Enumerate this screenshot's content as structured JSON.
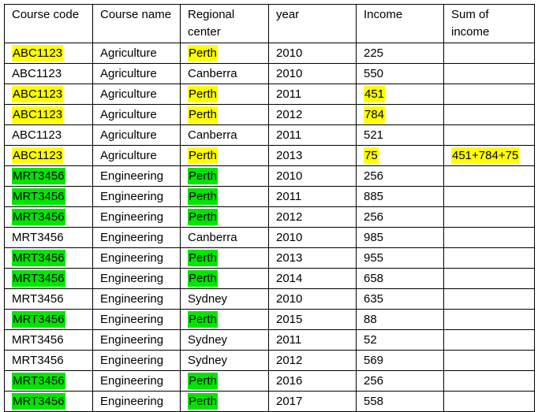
{
  "colors": {
    "highlight_yellow": "#ffff00",
    "highlight_green": "#00e600"
  },
  "table": {
    "headers": [
      "Course code",
      "Course name",
      "Regional center",
      "year",
      "Income",
      "Sum of income"
    ],
    "rows": [
      {
        "course_code": "ABC1123",
        "course_name": "Agriculture",
        "regional_center": "Perth",
        "year": "2010",
        "income": "225",
        "sum_of_income": ""
      },
      {
        "course_code": "ABC1123",
        "course_name": "Agriculture",
        "regional_center": "Canberra",
        "year": "2010",
        "income": "550",
        "sum_of_income": ""
      },
      {
        "course_code": "ABC1123",
        "course_name": "Agriculture",
        "regional_center": "Perth",
        "year": "2011",
        "income": "451",
        "sum_of_income": ""
      },
      {
        "course_code": "ABC1123",
        "course_name": "Agriculture",
        "regional_center": "Perth",
        "year": "2012",
        "income": "784",
        "sum_of_income": ""
      },
      {
        "course_code": "ABC1123",
        "course_name": "Agriculture",
        "regional_center": "Canberra",
        "year": "2011",
        "income": "521",
        "sum_of_income": ""
      },
      {
        "course_code": "ABC1123",
        "course_name": "Agriculture",
        "regional_center": "Perth",
        "year": "2013",
        "income": "75",
        "sum_of_income": "451+784+75"
      },
      {
        "course_code": "MRT3456",
        "course_name": "Engineering",
        "regional_center": "Perth",
        "year": "2010",
        "income": "256",
        "sum_of_income": ""
      },
      {
        "course_code": "MRT3456",
        "course_name": "Engineering",
        "regional_center": "Perth",
        "year": "2011",
        "income": "885",
        "sum_of_income": ""
      },
      {
        "course_code": "MRT3456",
        "course_name": "Engineering",
        "regional_center": "Perth",
        "year": "2012",
        "income": "256",
        "sum_of_income": ""
      },
      {
        "course_code": "MRT3456",
        "course_name": "Engineering",
        "regional_center": "Canberra",
        "year": "2010",
        "income": "985",
        "sum_of_income": ""
      },
      {
        "course_code": "MRT3456",
        "course_name": "Engineering",
        "regional_center": "Perth",
        "year": "2013",
        "income": "955",
        "sum_of_income": ""
      },
      {
        "course_code": "MRT3456",
        "course_name": "Engineering",
        "regional_center": "Perth",
        "year": "2014",
        "income": "658",
        "sum_of_income": ""
      },
      {
        "course_code": "MRT3456",
        "course_name": "Engineering",
        "regional_center": "Sydney",
        "year": "2010",
        "income": "635",
        "sum_of_income": ""
      },
      {
        "course_code": "MRT3456",
        "course_name": "Engineering",
        "regional_center": "Perth",
        "year": "2015",
        "income": "88",
        "sum_of_income": ""
      },
      {
        "course_code": "MRT3456",
        "course_name": "Engineering",
        "regional_center": "Sydney",
        "year": "2011",
        "income": "52",
        "sum_of_income": ""
      },
      {
        "course_code": "MRT3456",
        "course_name": "Engineering",
        "regional_center": "Sydney",
        "year": "2012",
        "income": "569",
        "sum_of_income": ""
      },
      {
        "course_code": "MRT3456",
        "course_name": "Engineering",
        "regional_center": "Perth",
        "year": "2016",
        "income": "256",
        "sum_of_income": ""
      },
      {
        "course_code": "MRT3456",
        "course_name": "Engineering",
        "regional_center": "Perth",
        "year": "2017",
        "income": "558",
        "sum_of_income": ""
      }
    ],
    "highlights": [
      {
        "row": 0,
        "cols": [
          "course_code",
          "regional_center"
        ],
        "color": "yellow"
      },
      {
        "row": 2,
        "cols": [
          "course_code",
          "regional_center",
          "income"
        ],
        "color": "yellow"
      },
      {
        "row": 3,
        "cols": [
          "course_code",
          "regional_center",
          "income"
        ],
        "color": "yellow"
      },
      {
        "row": 5,
        "cols": [
          "course_code",
          "regional_center",
          "income",
          "sum_of_income"
        ],
        "color": "yellow"
      },
      {
        "row": 6,
        "cols": [
          "course_code",
          "regional_center"
        ],
        "color": "green"
      },
      {
        "row": 7,
        "cols": [
          "course_code",
          "regional_center"
        ],
        "color": "green"
      },
      {
        "row": 8,
        "cols": [
          "course_code",
          "regional_center"
        ],
        "color": "green"
      },
      {
        "row": 10,
        "cols": [
          "course_code",
          "regional_center"
        ],
        "color": "green"
      },
      {
        "row": 11,
        "cols": [
          "course_code",
          "regional_center"
        ],
        "color": "green"
      },
      {
        "row": 13,
        "cols": [
          "course_code",
          "regional_center"
        ],
        "color": "green"
      },
      {
        "row": 16,
        "cols": [
          "course_code",
          "regional_center"
        ],
        "color": "green"
      },
      {
        "row": 17,
        "cols": [
          "course_code",
          "regional_center"
        ],
        "color": "green"
      }
    ]
  }
}
